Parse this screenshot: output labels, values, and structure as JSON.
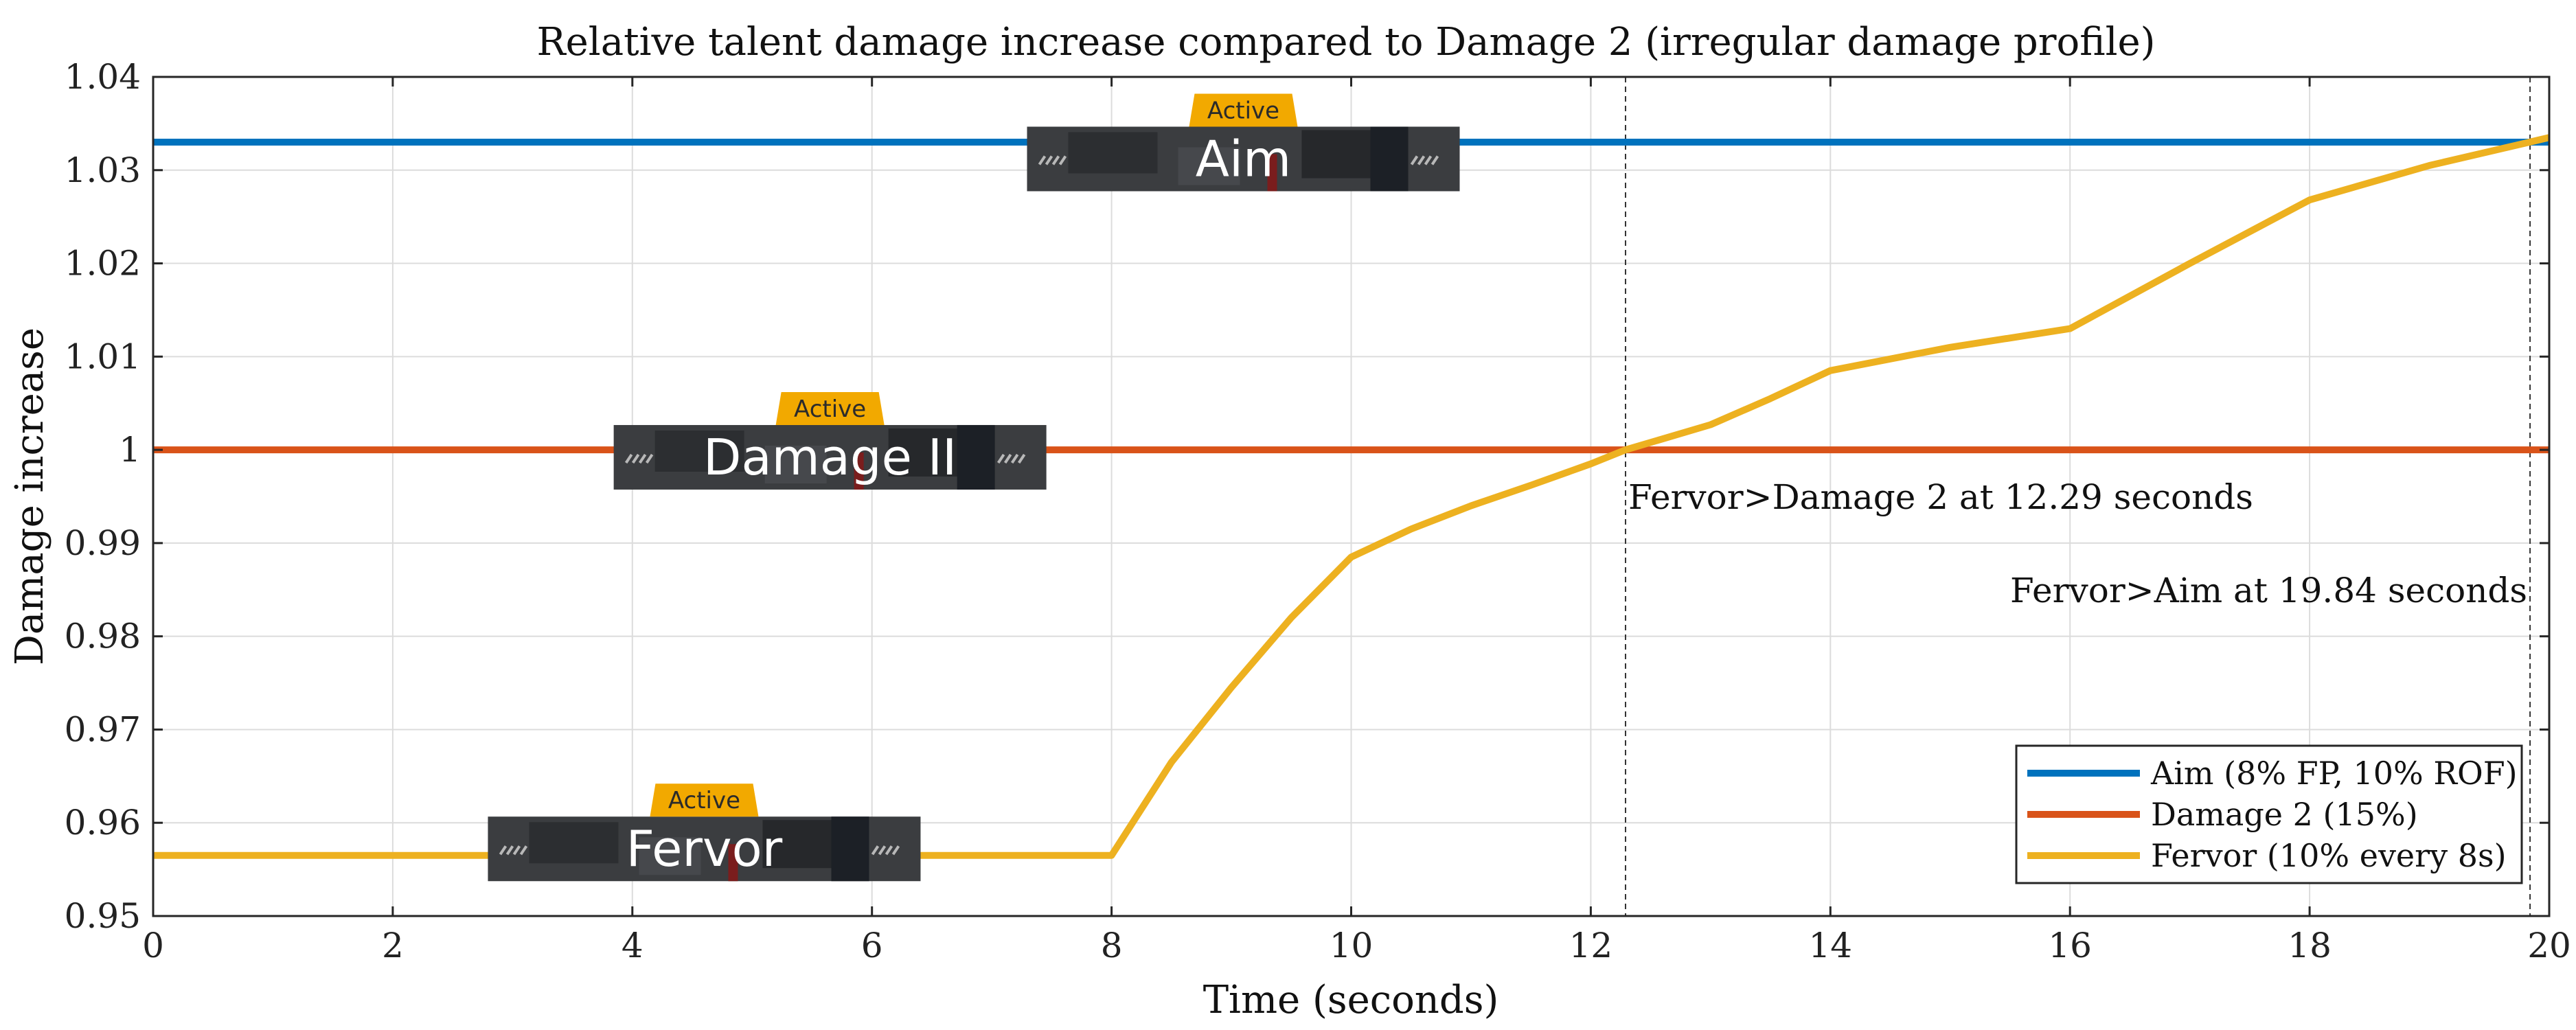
{
  "chart_data": {
    "type": "line",
    "title": "Relative talent damage increase compared to Damage 2 (irregular damage profile)",
    "xlabel": "Time (seconds)",
    "ylabel": "Damage increase",
    "xlim": [
      0,
      20
    ],
    "ylim": [
      0.95,
      1.04
    ],
    "x_ticks": [
      "0",
      "2",
      "4",
      "6",
      "8",
      "10",
      "12",
      "14",
      "16",
      "18",
      "20"
    ],
    "y_ticks": [
      "0.95",
      "0.96",
      "0.97",
      "0.98",
      "0.99",
      "1",
      "1.01",
      "1.02",
      "1.03",
      "1.04"
    ],
    "grid": true,
    "legend_position": "bottom-right",
    "series": [
      {
        "name": "Aim (8% FP, 10% ROF)",
        "color": "#0072BD",
        "x": [
          0,
          20
        ],
        "y": [
          1.033,
          1.033
        ]
      },
      {
        "name": "Damage 2 (15%)",
        "color": "#D95319",
        "x": [
          0,
          20
        ],
        "y": [
          1.0,
          1.0
        ]
      },
      {
        "name": "Fervor (10% every 8s)",
        "color": "#EDB120",
        "x": [
          0,
          8,
          8.5,
          9,
          9.5,
          10,
          10.5,
          11,
          11.5,
          12,
          12.29,
          13,
          13.5,
          14,
          15,
          16,
          17,
          18,
          19,
          20
        ],
        "y": [
          0.9565,
          0.9565,
          0.9665,
          0.9745,
          0.982,
          0.9885,
          0.9915,
          0.994,
          0.9962,
          0.9985,
          1.0,
          1.0027,
          1.0055,
          1.0085,
          1.011,
          1.013,
          1.02,
          1.0268,
          1.0305,
          1.0335
        ]
      }
    ],
    "vlines": [
      12.29,
      19.84
    ],
    "annotations": [
      {
        "text": "Fervor>Damage 2 at 12.29 seconds",
        "x": 12.29,
        "y": 0.995,
        "anchor": "start"
      },
      {
        "text": "Fervor>Aim at 19.84 seconds",
        "x": 19.84,
        "y": 0.985,
        "anchor": "end"
      }
    ],
    "badges": [
      {
        "label": "Aim",
        "status": "Active",
        "x": 9.1,
        "y": 1.0312
      },
      {
        "label": "Damage II",
        "status": "Active",
        "x": 5.65,
        "y": 0.9992
      },
      {
        "label": "Fervor",
        "status": "Active",
        "x": 4.6,
        "y": 0.9572
      }
    ]
  }
}
